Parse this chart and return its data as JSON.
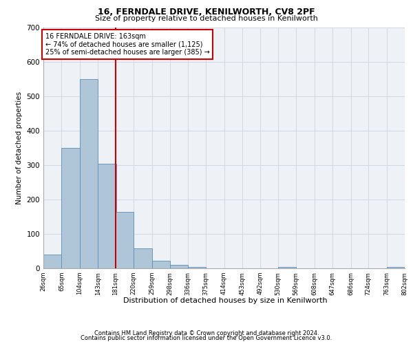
{
  "title1": "16, FERNDALE DRIVE, KENILWORTH, CV8 2PF",
  "title2": "Size of property relative to detached houses in Kenilworth",
  "xlabel": "Distribution of detached houses by size in Kenilworth",
  "ylabel": "Number of detached properties",
  "property_size": 163,
  "property_label": "16 FERNDALE DRIVE: 163sqm",
  "annotation_line1": "← 74% of detached houses are smaller (1,125)",
  "annotation_line2": "25% of semi-detached houses are larger (385) →",
  "red_line_x": 181,
  "bin_edges": [
    26,
    65,
    104,
    143,
    181,
    220,
    259,
    298,
    336,
    375,
    414,
    453,
    492,
    530,
    569,
    608,
    647,
    686,
    724,
    763,
    802
  ],
  "bar_heights": [
    40,
    350,
    550,
    305,
    165,
    58,
    22,
    10,
    5,
    0,
    0,
    0,
    0,
    5,
    0,
    0,
    0,
    0,
    0,
    5
  ],
  "bar_color": "#aec6d8",
  "bar_edge_color": "#5b8db8",
  "red_line_color": "#cc0000",
  "grid_color": "#d0d8e4",
  "background_color": "#eef2f7",
  "annotation_box_color": "#ffffff",
  "annotation_box_edge": "#cc0000",
  "footer1": "Contains HM Land Registry data © Crown copyright and database right 2024.",
  "footer2": "Contains public sector information licensed under the Open Government Licence v3.0.",
  "ylim": [
    0,
    700
  ],
  "yticks": [
    0,
    100,
    200,
    300,
    400,
    500,
    600,
    700
  ]
}
